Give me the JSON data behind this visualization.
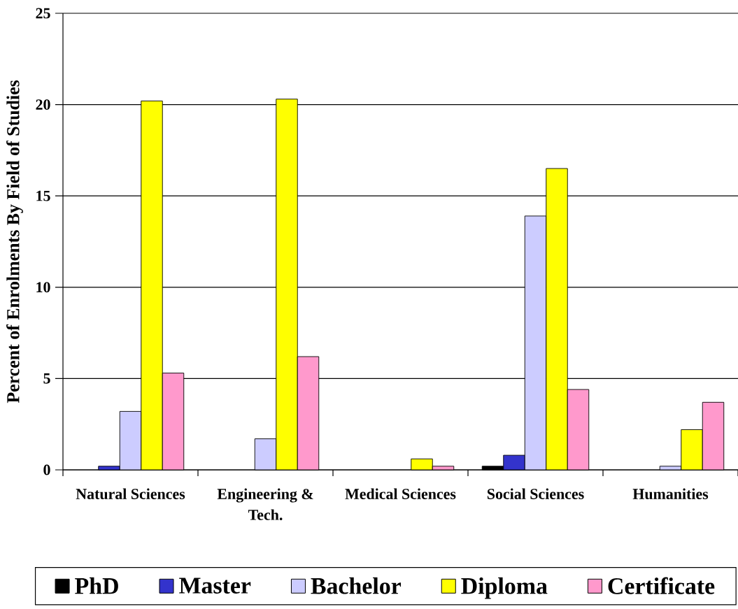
{
  "chart_data": {
    "type": "bar",
    "ylabel": "Percent of Enrolments By Field of Studies",
    "categories": [
      "Natural Sciences",
      "Engineering & Tech.",
      "Medical Sciences",
      "Social Sciences",
      "Humanities"
    ],
    "series": [
      {
        "name": "PhD",
        "color": "#000000",
        "values": [
          null,
          null,
          null,
          0.2,
          null
        ]
      },
      {
        "name": "Master",
        "color": "#3333cc",
        "values": [
          0.2,
          null,
          null,
          0.8,
          null
        ]
      },
      {
        "name": "Bachelor",
        "color": "#ccccff",
        "values": [
          3.2,
          1.7,
          null,
          13.9,
          0.2
        ]
      },
      {
        "name": "Diploma",
        "color": "#ffff00",
        "values": [
          20.2,
          20.3,
          0.6,
          16.5,
          2.2
        ]
      },
      {
        "name": "Certificate",
        "color": "#ff99cc",
        "values": [
          5.3,
          6.2,
          0.2,
          4.4,
          3.7
        ]
      }
    ],
    "ylim": [
      0,
      25
    ],
    "yticks": [
      0,
      5,
      10,
      15,
      20,
      25
    ],
    "grid": "y",
    "legend": "bottom"
  }
}
